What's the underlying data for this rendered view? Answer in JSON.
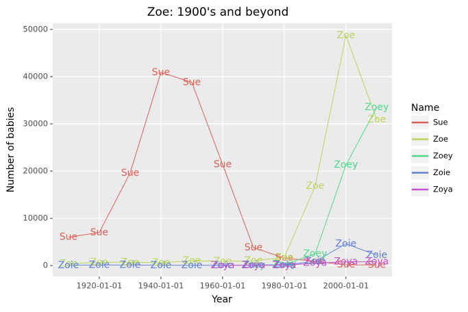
{
  "chart_data": {
    "type": "line",
    "title": "Zoe: 1900's and beyond",
    "x_label": "Year",
    "y_label": "Number of babies",
    "legend_title": "Name",
    "x": [
      "1910-01-01",
      "1920-01-01",
      "1930-01-01",
      "1940-01-01",
      "1950-01-01",
      "1960-01-01",
      "1970-01-01",
      "1980-01-01",
      "1990-01-01",
      "2000-01-01",
      "2010-01-01"
    ],
    "series": [
      {
        "name": "Sue",
        "color": "#dd5f54",
        "values": [
          6000,
          7000,
          19600,
          40900,
          38800,
          21400,
          3800,
          1600,
          900,
          150,
          100
        ]
      },
      {
        "name": "Zoe",
        "color": "#b9d55a",
        "values": [
          400,
          700,
          700,
          600,
          1000,
          900,
          1000,
          1700,
          16800,
          48700,
          30900
        ]
      },
      {
        "name": "Zoey",
        "color": "#4ed88a",
        "values": [
          null,
          null,
          null,
          null,
          null,
          null,
          100,
          200,
          2500,
          21300,
          33500
        ]
      },
      {
        "name": "Zoie",
        "color": "#5b7fd6",
        "values": [
          50,
          100,
          100,
          50,
          50,
          50,
          100,
          100,
          900,
          4600,
          2200
        ]
      },
      {
        "name": "Zoya",
        "color": "#c94fd1",
        "values": [
          null,
          null,
          null,
          null,
          null,
          50,
          50,
          50,
          500,
          800,
          800
        ]
      }
    ],
    "xlim": [
      "1904-12-01",
      "2014-12-01"
    ],
    "xticks": [
      "1920-01-01",
      "1940-01-01",
      "1960-01-01",
      "1980-01-01",
      "2000-01-01"
    ],
    "ylim": [
      -2300,
      51300
    ],
    "yticks": [
      0,
      10000,
      20000,
      30000,
      40000,
      50000
    ],
    "grid": true
  }
}
